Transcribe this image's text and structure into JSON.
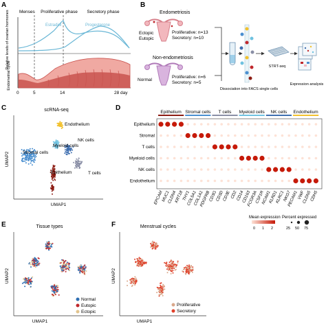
{
  "panel_letters": [
    "A",
    "B",
    "C",
    "D",
    "E",
    "F"
  ],
  "panel_a": {
    "phases": [
      "Menses",
      "Proliferative phase",
      "Secretory phase"
    ],
    "hormones": [
      "Estradiol",
      "Progesterone"
    ],
    "ylabel_top": "Relative levels of ovarian hormones",
    "ylabel_bottom": "Endometrial cycle",
    "ticks": [
      "0",
      "5",
      "14",
      "28 day"
    ],
    "colors": {
      "hormone_line": "#6ab7d6",
      "endometrium": "#c9534f",
      "endometrium_light": "#f0a9a2"
    }
  },
  "panel_b": {
    "endometriosis_title": "Endometriosis",
    "endometriosis_labels": [
      "Ectopic",
      "Eutopic"
    ],
    "endometriosis_counts": [
      "Proliferative: n=13",
      "Secretory: n=10"
    ],
    "non_title": "Non-endometriosis",
    "non_label": "Normal",
    "non_counts": [
      "Proliferative: n=6",
      "Secretory: n=5"
    ],
    "step1": "Dissociation into FACS single cells",
    "step2": "STRT-seq",
    "step3": "Expression analysis"
  },
  "panel_c": {
    "title": "scRNA-seq",
    "xlabel": "UMAP1",
    "ylabel": "UMAP2",
    "clusters": [
      {
        "name": "Endothelium",
        "color": "#f2c12e"
      },
      {
        "name": "NK cells",
        "color": "#3f6fb0"
      },
      {
        "name": "Myeloid cells",
        "color": "#6fc2e0"
      },
      {
        "name": "Stromal cells",
        "color": "#4a8fd0"
      },
      {
        "name": "T cells",
        "color": "#8a8fa6"
      },
      {
        "name": "Epithelium",
        "color": "#8c1c13"
      }
    ]
  },
  "panel_d": {
    "groups": [
      "Epithelium",
      "Stromal cells",
      "T cells",
      "Myeloid cells",
      "NK cells",
      "Endothelium"
    ],
    "group_colors": [
      "#8c1c13",
      "#4a8fd0",
      "#8a8fa6",
      "#6fc2e0",
      "#3f6fb0",
      "#f2c12e"
    ],
    "rows": [
      "Epithelium",
      "Stromal",
      "T cells",
      "Myeloid cells",
      "NK cells",
      "Endothelium"
    ],
    "genes": [
      "EPCAM",
      "MUC1",
      "CLDN4",
      "KRT18",
      "THY1",
      "COL5A1",
      "COL1A1",
      "PDGFRB",
      "CD3G",
      "CD3D",
      "CD3E",
      "CD2",
      "CD14",
      "CD163",
      "FCGR3A",
      "CSF1R",
      "NCAM1",
      "KLRD1",
      "KLRC1",
      "NKG7",
      "PECAM1",
      "VWF",
      "CLDN5",
      "CDH5"
    ],
    "legend_expr_title": "Mean expression",
    "legend_expr_ticks": [
      "0",
      "1",
      "2"
    ],
    "legend_pct_title": "Percent expressed",
    "legend_pct_ticks": [
      "25",
      "50",
      "75"
    ],
    "colors": {
      "high": "#c61a09",
      "low": "#fde2d6"
    }
  },
  "panel_e": {
    "title": "Tissue types",
    "xlabel": "UMAP1",
    "ylabel": "UMAP2",
    "legend": [
      {
        "name": "Normal",
        "color": "#2f6fb3"
      },
      {
        "name": "Eutopic",
        "color": "#c0282d"
      },
      {
        "name": "Ectopic",
        "color": "#e2c48e"
      }
    ]
  },
  "panel_f": {
    "title": "Menstrual cycles",
    "xlabel": "UMAP1",
    "ylabel": "UMAP2",
    "legend": [
      {
        "name": "Proliferative",
        "color": "#d9a88b"
      },
      {
        "name": "Secretory",
        "color": "#e0402a"
      }
    ]
  }
}
